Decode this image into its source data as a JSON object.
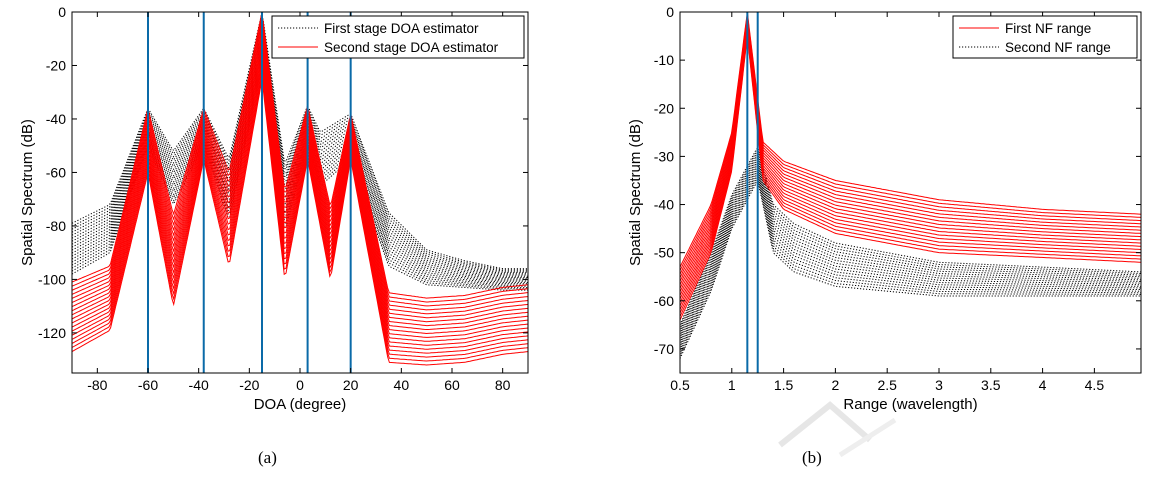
{
  "chart_data": [
    {
      "type": "line",
      "panel": "(a)",
      "xlabel": "DOA (degree)",
      "ylabel": "Spatial Spectrum (dB)",
      "xlim": [
        -90,
        90
      ],
      "ylim": [
        -135,
        0
      ],
      "xticks": [
        -80,
        -60,
        -40,
        -20,
        0,
        20,
        40,
        60,
        80
      ],
      "yticks": [
        0,
        -20,
        -40,
        -60,
        -80,
        -100,
        -120
      ],
      "grid": false,
      "legend_position": "top-right",
      "legend": [
        "First stage DOA estimator",
        "Second stage DOA estimator"
      ],
      "true_doas": [
        -60,
        -38,
        -15,
        3,
        20
      ],
      "series": [
        {
          "name": "First stage DOA estimator",
          "style": "dotted",
          "color": "#000000",
          "curves": 18,
          "x": [
            -90,
            -75,
            -60,
            -50,
            -38,
            -28,
            -15,
            -6,
            3,
            8,
            20,
            35,
            50,
            65,
            80,
            90
          ],
          "upper": [
            -79,
            -72,
            -36,
            -52,
            -36,
            -55,
            0,
            -57,
            -35,
            -45,
            -38,
            -75,
            -89,
            -93,
            -96,
            -96
          ],
          "lower": [
            -98,
            -90,
            -50,
            -72,
            -50,
            -78,
            -20,
            -82,
            -50,
            -65,
            -55,
            -95,
            -102,
            -103,
            -104,
            -104
          ]
        },
        {
          "name": "Second stage DOA estimator",
          "style": "solid",
          "color": "#ff0000",
          "curves": 18,
          "x": [
            -90,
            -75,
            -60,
            -50,
            -38,
            -28,
            -15,
            -6,
            3,
            12,
            20,
            35,
            50,
            65,
            80,
            90
          ],
          "upper": [
            -101,
            -95,
            -36,
            -76,
            -36,
            -60,
            0,
            -67,
            -35,
            -73,
            -38,
            -105,
            -107,
            -106,
            -103,
            -102
          ],
          "lower": [
            -127,
            -119,
            -60,
            -110,
            -55,
            -95,
            -25,
            -100,
            -55,
            -100,
            -55,
            -131,
            -132,
            -131,
            -128,
            -127
          ]
        }
      ]
    },
    {
      "type": "line",
      "panel": "(b)",
      "xlabel": "Range (wavelength)",
      "ylabel": "Spatial Spectrum (dB)",
      "xlim": [
        0.5,
        4.95
      ],
      "ylim": [
        -75,
        0
      ],
      "xticks": [
        "0.5",
        "1",
        "1.5",
        "2",
        "2.5",
        "3",
        "3.5",
        "4",
        "4.5"
      ],
      "yticks": [
        0,
        -10,
        -20,
        -30,
        -40,
        -50,
        -60,
        -70
      ],
      "grid": false,
      "legend_position": "top-right",
      "legend": [
        "First NF range",
        "Second NF range"
      ],
      "true_ranges": [
        1.15,
        1.25
      ],
      "series": [
        {
          "name": "First NF range",
          "style": "solid",
          "color": "#ff0000",
          "curves": 16,
          "x": [
            0.5,
            0.8,
            1.0,
            1.15,
            1.3,
            1.5,
            2.0,
            3.0,
            4.0,
            4.95
          ],
          "upper": [
            -53,
            -40,
            -25,
            0,
            -27,
            -31,
            -35,
            -39,
            -41,
            -42
          ],
          "lower": [
            -64,
            -50,
            -33,
            -5,
            -35,
            -41,
            -46,
            -50,
            -51,
            -52
          ]
        },
        {
          "name": "Second NF range",
          "style": "dotted",
          "color": "#000000",
          "curves": 16,
          "x": [
            0.5,
            0.8,
            1.0,
            1.25,
            1.4,
            1.6,
            2.0,
            3.0,
            4.0,
            4.95
          ],
          "upper": [
            -65,
            -50,
            -38,
            -28,
            -40,
            -44,
            -48,
            -52,
            -53,
            -54
          ],
          "lower": [
            -72,
            -58,
            -45,
            -35,
            -50,
            -54,
            -57,
            -59,
            -59,
            -59
          ]
        }
      ]
    }
  ],
  "captions": [
    "(a)",
    "(b)"
  ]
}
